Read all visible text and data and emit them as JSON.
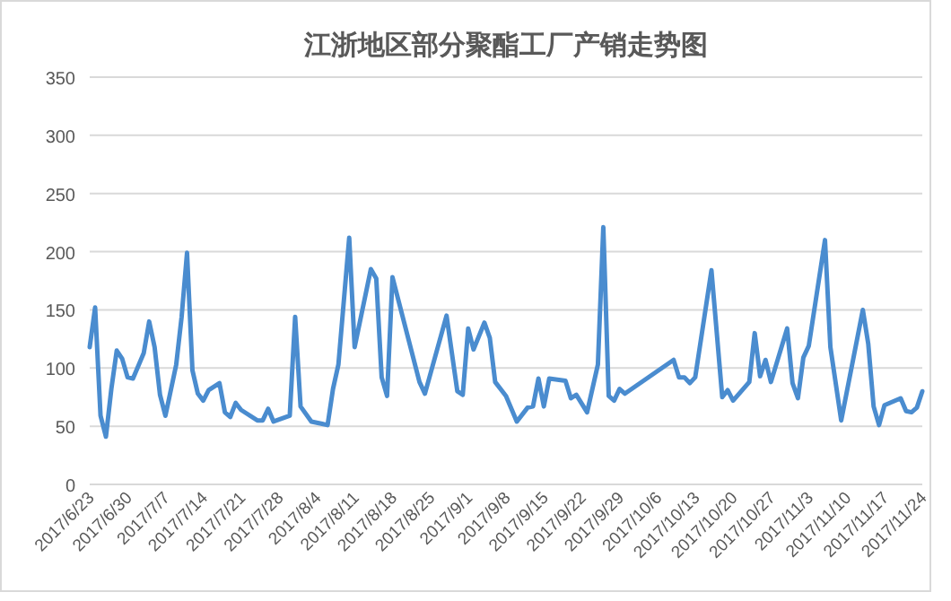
{
  "chart_data": {
    "type": "line",
    "title": "江浙地区部分聚酯工厂产销走势图",
    "x": [
      "2017-06-23",
      "2017-06-24",
      "2017-06-25",
      "2017-06-26",
      "2017-06-27",
      "2017-06-28",
      "2017-06-29",
      "2017-06-30",
      "2017-07-01",
      "2017-07-03",
      "2017-07-04",
      "2017-07-05",
      "2017-07-06",
      "2017-07-07",
      "2017-07-09",
      "2017-07-10",
      "2017-07-11",
      "2017-07-12",
      "2017-07-13",
      "2017-07-14",
      "2017-07-15",
      "2017-07-17",
      "2017-07-18",
      "2017-07-19",
      "2017-07-20",
      "2017-07-21",
      "2017-07-24",
      "2017-07-25",
      "2017-07-26",
      "2017-07-27",
      "2017-07-30",
      "2017-07-31",
      "2017-08-01",
      "2017-08-03",
      "2017-08-05",
      "2017-08-06",
      "2017-08-07",
      "2017-08-08",
      "2017-08-10",
      "2017-08-11",
      "2017-08-14",
      "2017-08-15",
      "2017-08-16",
      "2017-08-17",
      "2017-08-18",
      "2017-08-23",
      "2017-08-24",
      "2017-08-28",
      "2017-08-30",
      "2017-08-31",
      "2017-09-01",
      "2017-09-02",
      "2017-09-04",
      "2017-09-05",
      "2017-09-06",
      "2017-09-08",
      "2017-09-10",
      "2017-09-12",
      "2017-09-13",
      "2017-09-14",
      "2017-09-15",
      "2017-09-16",
      "2017-09-19",
      "2017-09-20",
      "2017-09-21",
      "2017-09-23",
      "2017-09-25",
      "2017-09-26",
      "2017-09-27",
      "2017-09-28",
      "2017-09-29",
      "2017-09-30",
      "2017-10-09",
      "2017-10-10",
      "2017-10-11",
      "2017-10-12",
      "2017-10-13",
      "2017-10-16",
      "2017-10-18",
      "2017-10-19",
      "2017-10-20",
      "2017-10-23",
      "2017-10-24",
      "2017-10-25",
      "2017-10-26",
      "2017-10-27",
      "2017-10-30",
      "2017-10-31",
      "2017-11-01",
      "2017-11-02",
      "2017-11-03",
      "2017-11-06",
      "2017-11-07",
      "2017-11-09",
      "2017-11-13",
      "2017-11-14",
      "2017-11-15",
      "2017-11-16",
      "2017-11-17",
      "2017-11-20",
      "2017-11-21",
      "2017-11-22",
      "2017-11-23",
      "2017-11-24"
    ],
    "series": [
      {
        "color": "#4a8ccf",
        "values": [
          118,
          152,
          59,
          41,
          82,
          115,
          108,
          92,
          91,
          113,
          140,
          118,
          77,
          59,
          103,
          144,
          199,
          98,
          78,
          72,
          81,
          87,
          62,
          58,
          70,
          64,
          55,
          55,
          65,
          54,
          59,
          144,
          67,
          54,
          52,
          51,
          82,
          103,
          212,
          118,
          185,
          177,
          92,
          76,
          178,
          88,
          78,
          145,
          80,
          77,
          134,
          116,
          139,
          126,
          88,
          76,
          54,
          66,
          67,
          91,
          67,
          91,
          89,
          74,
          77,
          62,
          103,
          221,
          76,
          72,
          82,
          78,
          107,
          92,
          92,
          87,
          92,
          184,
          75,
          81,
          72,
          88,
          130,
          93,
          107,
          88,
          134,
          87,
          74,
          109,
          119,
          210,
          118,
          55,
          150,
          121,
          67,
          51,
          68,
          74,
          63,
          62,
          66,
          80
        ]
      }
    ],
    "xlim": [
      "2017-06-23",
      "2017-11-24"
    ],
    "xticks": [
      {
        "value": "2017-06-23",
        "label": "2017/6/23"
      },
      {
        "value": "2017-06-30",
        "label": "2017/6/30"
      },
      {
        "value": "2017-07-07",
        "label": "2017/7/7"
      },
      {
        "value": "2017-07-14",
        "label": "2017/7/14"
      },
      {
        "value": "2017-07-21",
        "label": "2017/7/21"
      },
      {
        "value": "2017-07-28",
        "label": "2017/7/28"
      },
      {
        "value": "2017-08-04",
        "label": "2017/8/4"
      },
      {
        "value": "2017-08-11",
        "label": "2017/8/11"
      },
      {
        "value": "2017-08-18",
        "label": "2017/8/18"
      },
      {
        "value": "2017-08-25",
        "label": "2017/8/25"
      },
      {
        "value": "2017-09-01",
        "label": "2017/9/1"
      },
      {
        "value": "2017-09-08",
        "label": "2017/9/8"
      },
      {
        "value": "2017-09-15",
        "label": "2017/9/15"
      },
      {
        "value": "2017-09-22",
        "label": "2017/9/22"
      },
      {
        "value": "2017-09-29",
        "label": "2017/9/29"
      },
      {
        "value": "2017-10-06",
        "label": "2017/10/6"
      },
      {
        "value": "2017-10-13",
        "label": "2017/10/13"
      },
      {
        "value": "2017-10-20",
        "label": "2017/10/20"
      },
      {
        "value": "2017-10-27",
        "label": "2017/10/27"
      },
      {
        "value": "2017-11-03",
        "label": "2017/11/3"
      },
      {
        "value": "2017-11-10",
        "label": "2017/11/10"
      },
      {
        "value": "2017-11-17",
        "label": "2017/11/17"
      },
      {
        "value": "2017-11-24",
        "label": "2017/11/24"
      }
    ],
    "ylim": [
      0,
      350
    ],
    "yticks": [
      0,
      50,
      100,
      150,
      200,
      250,
      300,
      350
    ],
    "grid": "y",
    "marker": "none",
    "line_style": "solid"
  }
}
